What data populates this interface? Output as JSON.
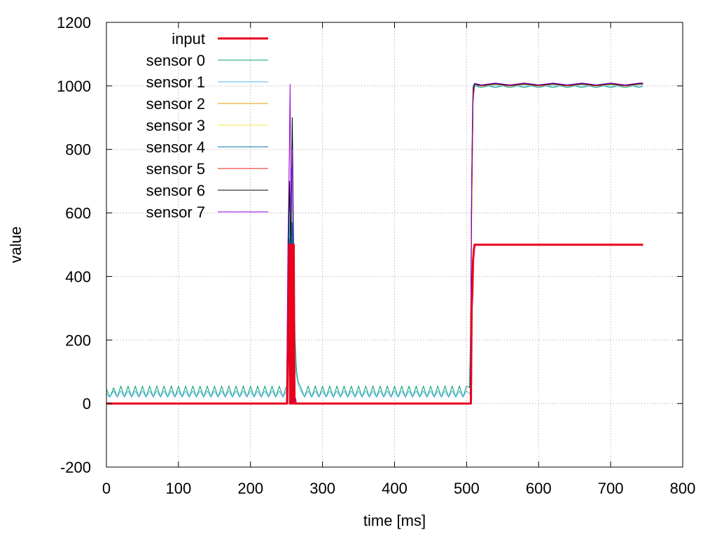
{
  "chart_data": {
    "type": "line",
    "title": "",
    "xlabel": "time [ms]",
    "ylabel": "value",
    "xlim": [
      0,
      800
    ],
    "ylim": [
      -200,
      1200
    ],
    "xticks": [
      0,
      100,
      200,
      300,
      400,
      500,
      600,
      700,
      800
    ],
    "yticks": [
      -200,
      0,
      200,
      400,
      600,
      800,
      1000,
      1200
    ],
    "grid": true,
    "legend_position": "top-left",
    "series": [
      {
        "name": "input",
        "color": "#e8001c",
        "width": 3,
        "x": [
          0,
          250,
          251,
          254,
          255,
          256,
          257,
          258,
          259,
          260,
          261,
          262,
          500,
          505,
          506,
          507,
          508,
          509,
          510,
          511,
          745
        ],
        "y": [
          0,
          0,
          0,
          500,
          0,
          500,
          0,
          500,
          0,
          500,
          0,
          0,
          0,
          0,
          0,
          300,
          350,
          450,
          480,
          500,
          500
        ]
      },
      {
        "name": "sensor 0",
        "color": "#009e73",
        "width": 1,
        "x": [
          0,
          5,
          10,
          15,
          20,
          25,
          30,
          35,
          40,
          45,
          50,
          55,
          60,
          65,
          70,
          75,
          80,
          85,
          90,
          95,
          100,
          105,
          110,
          115,
          120,
          125,
          130,
          135,
          140,
          145,
          150,
          155,
          160,
          165,
          170,
          175,
          180,
          185,
          190,
          195,
          200,
          205,
          210,
          215,
          220,
          225,
          230,
          235,
          240,
          245,
          250,
          252,
          254,
          256,
          258,
          260,
          262,
          264,
          266,
          268,
          270,
          275,
          280,
          285,
          290,
          295,
          300,
          305,
          310,
          315,
          320,
          325,
          330,
          335,
          340,
          345,
          350,
          355,
          360,
          365,
          370,
          375,
          380,
          385,
          390,
          395,
          400,
          405,
          410,
          415,
          420,
          425,
          430,
          435,
          440,
          445,
          450,
          455,
          460,
          465,
          470,
          475,
          480,
          485,
          490,
          495,
          500,
          504,
          506,
          507,
          508,
          509,
          510,
          512,
          520,
          530,
          540,
          550,
          560,
          570,
          580,
          590,
          600,
          610,
          620,
          630,
          640,
          650,
          660,
          670,
          680,
          690,
          700,
          710,
          720,
          730,
          740,
          745
        ],
        "y": [
          45,
          20,
          50,
          20,
          55,
          20,
          55,
          20,
          55,
          20,
          55,
          20,
          55,
          20,
          55,
          20,
          55,
          20,
          55,
          20,
          55,
          20,
          55,
          20,
          55,
          20,
          55,
          20,
          55,
          20,
          55,
          20,
          55,
          20,
          55,
          20,
          55,
          20,
          55,
          20,
          55,
          20,
          55,
          20,
          55,
          20,
          55,
          20,
          55,
          20,
          55,
          300,
          700,
          400,
          900,
          500,
          200,
          100,
          70,
          60,
          50,
          20,
          55,
          20,
          55,
          20,
          55,
          20,
          55,
          20,
          55,
          20,
          55,
          20,
          55,
          20,
          55,
          20,
          55,
          20,
          55,
          20,
          55,
          20,
          55,
          20,
          55,
          20,
          55,
          20,
          55,
          20,
          55,
          20,
          55,
          20,
          55,
          20,
          55,
          20,
          55,
          20,
          55,
          20,
          55,
          20,
          55,
          50,
          300,
          650,
          900,
          1000,
          1005,
          1000,
          995,
          1000,
          995,
          1000,
          995,
          1000,
          995,
          1000,
          995,
          1000,
          995,
          1000,
          995,
          1000,
          995,
          1000,
          995,
          1000,
          995,
          1000,
          995,
          1000,
          995,
          1000
        ]
      },
      {
        "name": "sensor 1",
        "color": "#56b4e9",
        "width": 1,
        "x": [
          0,
          5,
          10,
          15,
          20,
          25,
          30,
          35,
          40,
          45,
          50,
          55,
          60,
          65,
          70,
          75,
          80,
          85,
          90,
          95,
          100,
          105,
          110,
          115,
          120,
          125,
          130,
          135,
          140,
          145,
          150,
          155,
          160,
          165,
          170,
          175,
          180,
          185,
          190,
          195,
          200,
          205,
          210,
          215,
          220,
          225,
          230,
          235,
          240,
          245,
          250,
          253,
          256,
          258,
          260,
          263,
          266,
          270,
          275,
          280,
          285,
          290,
          295,
          300,
          305,
          310,
          315,
          320,
          325,
          330,
          335,
          340,
          345,
          350,
          355,
          360,
          365,
          370,
          375,
          380,
          385,
          390,
          395,
          400,
          405,
          410,
          415,
          420,
          425,
          430,
          435,
          440,
          445,
          450,
          455,
          460,
          465,
          470,
          475,
          480,
          485,
          490,
          495,
          500,
          505,
          507,
          509,
          511,
          520,
          540,
          560,
          580,
          600,
          620,
          640,
          660,
          680,
          700,
          720,
          740,
          745
        ],
        "y": [
          30,
          20,
          40,
          20,
          40,
          20,
          40,
          20,
          40,
          20,
          40,
          20,
          40,
          20,
          40,
          20,
          40,
          20,
          40,
          20,
          40,
          20,
          40,
          20,
          40,
          20,
          40,
          20,
          40,
          20,
          40,
          20,
          40,
          20,
          40,
          20,
          40,
          20,
          40,
          20,
          40,
          20,
          40,
          20,
          40,
          20,
          40,
          20,
          40,
          20,
          40,
          400,
          740,
          500,
          200,
          100,
          60,
          40,
          20,
          40,
          20,
          40,
          20,
          40,
          20,
          40,
          20,
          40,
          20,
          40,
          20,
          40,
          20,
          40,
          20,
          40,
          20,
          40,
          20,
          40,
          20,
          40,
          20,
          40,
          20,
          40,
          20,
          40,
          20,
          40,
          20,
          40,
          20,
          40,
          20,
          40,
          20,
          40,
          20,
          40,
          20,
          40,
          20,
          40,
          30,
          600,
          950,
          1000,
          1000,
          1000,
          1000,
          1000,
          1000,
          1000,
          1000,
          1000,
          1000,
          1000,
          1000,
          1000,
          1000
        ]
      },
      {
        "name": "sensor 2",
        "color": "#e69f00",
        "width": 1,
        "x": [
          0,
          250,
          252,
          254,
          256,
          258,
          260,
          262,
          264,
          500,
          505,
          507,
          509,
          511,
          520,
          540,
          560,
          580,
          600,
          620,
          640,
          660,
          680,
          700,
          720,
          740,
          745
        ],
        "y": [
          0,
          0,
          200,
          400,
          300,
          450,
          200,
          0,
          0,
          0,
          0,
          600,
          950,
          1005,
          1000,
          1005,
          1000,
          1005,
          1000,
          1005,
          1000,
          1005,
          1000,
          1005,
          1000,
          1005,
          1005
        ]
      },
      {
        "name": "sensor 3",
        "color": "#f0e442",
        "width": 1,
        "x": [
          0,
          250,
          252,
          254,
          256,
          258,
          260,
          262,
          264,
          500,
          505,
          507,
          509,
          511,
          520,
          540,
          560,
          580,
          600,
          620,
          640,
          660,
          680,
          700,
          720,
          740,
          745
        ],
        "y": [
          0,
          0,
          250,
          420,
          320,
          460,
          220,
          0,
          0,
          0,
          0,
          620,
          960,
          1005,
          1002,
          1006,
          1002,
          1006,
          1002,
          1006,
          1002,
          1006,
          1002,
          1006,
          1002,
          1006,
          1006
        ]
      },
      {
        "name": "sensor 4",
        "color": "#0072b2",
        "width": 1,
        "x": [
          0,
          250,
          252,
          254,
          256,
          258,
          260,
          262,
          264,
          500,
          505,
          507,
          509,
          511,
          520,
          540,
          560,
          580,
          600,
          620,
          640,
          660,
          680,
          700,
          720,
          740,
          745
        ],
        "y": [
          0,
          0,
          300,
          520,
          400,
          570,
          250,
          20,
          0,
          0,
          0,
          650,
          970,
          1008,
          1003,
          1008,
          1003,
          1008,
          1003,
          1008,
          1003,
          1008,
          1003,
          1008,
          1003,
          1008,
          1008
        ]
      },
      {
        "name": "sensor 5",
        "color": "#e51e10",
        "width": 1,
        "x": [
          0,
          250,
          252,
          254,
          256,
          258,
          260,
          262,
          264,
          500,
          505,
          507,
          509,
          511,
          520,
          540,
          560,
          580,
          600,
          620,
          640,
          660,
          680,
          700,
          720,
          740,
          745
        ],
        "y": [
          0,
          0,
          200,
          450,
          300,
          500,
          200,
          0,
          0,
          0,
          0,
          600,
          950,
          1005,
          1000,
          1007,
          1000,
          1007,
          1000,
          1007,
          1000,
          1007,
          1000,
          1007,
          1000,
          1007,
          1007
        ]
      },
      {
        "name": "sensor 6",
        "color": "#000000",
        "width": 1,
        "x": [
          0,
          250,
          252,
          254,
          256,
          258,
          260,
          262,
          264,
          500,
          505,
          507,
          509,
          511,
          520,
          540,
          560,
          580,
          600,
          620,
          640,
          660,
          680,
          700,
          720,
          740,
          745
        ],
        "y": [
          0,
          0,
          400,
          700,
          500,
          900,
          300,
          20,
          0,
          0,
          0,
          700,
          980,
          1005,
          1002,
          1006,
          1002,
          1006,
          1002,
          1006,
          1002,
          1006,
          1002,
          1006,
          1002,
          1006,
          1006
        ]
      },
      {
        "name": "sensor 7",
        "color": "#9400d3",
        "width": 1,
        "x": [
          0,
          250,
          252,
          254,
          255,
          256,
          258,
          260,
          262,
          264,
          500,
          505,
          507,
          509,
          511,
          520,
          540,
          560,
          580,
          600,
          620,
          640,
          660,
          680,
          700,
          720,
          740,
          745
        ],
        "y": [
          0,
          0,
          500,
          800,
          1005,
          600,
          800,
          300,
          20,
          0,
          0,
          0,
          720,
          990,
          1008,
          1003,
          1009,
          1003,
          1009,
          1003,
          1009,
          1003,
          1009,
          1003,
          1009,
          1003,
          1009,
          1009
        ]
      }
    ]
  }
}
